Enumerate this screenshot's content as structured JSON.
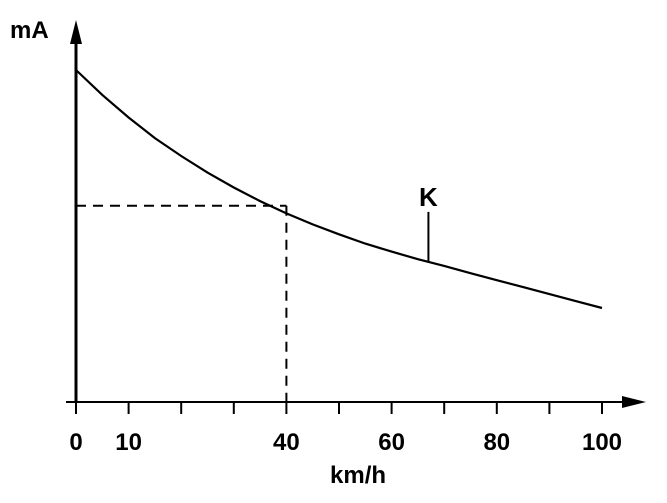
{
  "chart_data": {
    "type": "line",
    "title": "",
    "xlabel": "km/h",
    "ylabel": "mA",
    "xlim": [
      0,
      100
    ],
    "x_ticks": [
      0,
      10,
      20,
      30,
      40,
      50,
      60,
      70,
      80,
      90,
      100
    ],
    "x_tick_labels": [
      "0",
      "10",
      "40",
      "60",
      "80",
      "100"
    ],
    "y_ticks": [],
    "grid": false,
    "series": [
      {
        "x": [
          0,
          5,
          10,
          15,
          20,
          25,
          30,
          35,
          40,
          45,
          50,
          55,
          60,
          65,
          70,
          75,
          80,
          85,
          90,
          95,
          100
        ],
        "y": [
          1.0,
          0.925,
          0.857,
          0.795,
          0.741,
          0.691,
          0.646,
          0.605,
          0.568,
          0.535,
          0.505,
          0.477,
          0.453,
          0.43,
          0.41,
          0.388,
          0.367,
          0.346,
          0.325,
          0.304,
          0.283
        ]
      }
    ],
    "reference_lines": [
      {
        "x": 40,
        "y": 0.591,
        "style": "dashed"
      }
    ],
    "annotations": [
      {
        "label": "K",
        "x": 67
      }
    ]
  }
}
